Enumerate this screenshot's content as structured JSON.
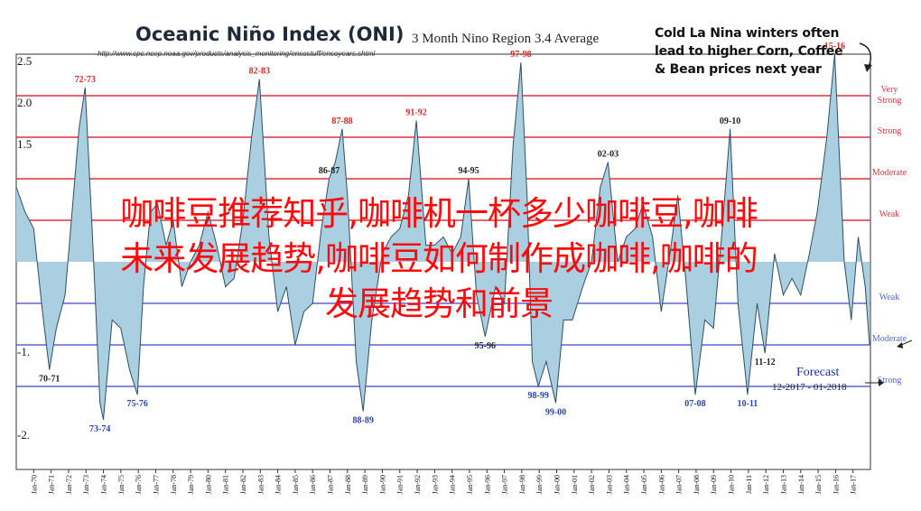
{
  "header": {
    "title": "Oceanic Niño Index (ONI)",
    "subtitle": "3 Month Nino Region 3.4 Average",
    "url": "http://www.cpc.ncep.noaa.gov/products/analysis_monitoring/ensostuff/ensoyears.shtml"
  },
  "callout": {
    "lines": [
      "Cold La Nina winters often",
      "lead to higher Corn, Coffee",
      "& Bean prices next year"
    ]
  },
  "overlay_text": {
    "lines": [
      "咖啡豆推荐知乎,咖啡机一杯多少咖啡豆,咖啡",
      "未来发展趋势,咖啡豆如何制作成咖啡,咖啡的",
      "发展趋势和前景"
    ]
  },
  "forecast": {
    "label": "Forecast",
    "range": "12-2017 - 01-2018"
  },
  "colors": {
    "fill": "#a9cfe0",
    "line": "#2e4f63",
    "red_band": "#e0323c",
    "blue_band": "#5a63d6"
  },
  "chart_data": {
    "type": "area",
    "title": "Oceanic Niño Index (ONI)",
    "subtitle": "3 Month Nino Region 3.4 Average",
    "ylim": [
      -2.5,
      2.5
    ],
    "y_tick_labels": [
      "2.5",
      "2.0",
      "1.5",
      "-1.",
      "-2."
    ],
    "x_tick_labels": [
      "Jan-70",
      "Jan-71",
      "Jan-72",
      "Jan-73",
      "Jan-74",
      "Jan-75",
      "Jan-76",
      "Jan-77",
      "Jan-78",
      "Jan-79",
      "Jan-80",
      "Jan-81",
      "Jan-82",
      "Jan-83",
      "Jan-84",
      "Jan-85",
      "Jan-86",
      "Jan-87",
      "Jan-88",
      "Jan-89",
      "Jan-90",
      "Jan-91",
      "Jan-92",
      "Jan-93",
      "Jan-94",
      "Jan-95",
      "Jan-96",
      "Jan-97",
      "Jan-98",
      "Jan-99",
      "Jan-00",
      "Jan-01",
      "Jan-02",
      "Jan-03",
      "Jan-04",
      "Jan-05",
      "Jan-06",
      "Jan-07",
      "Jan-08",
      "Jan-09",
      "Jan-10",
      "Jan-11",
      "Jan-12",
      "Jan-13",
      "Jan-14",
      "Jan-15",
      "Jan-16",
      "Jan-17"
    ],
    "bands": [
      {
        "value": 2.0,
        "label": "Very Strong",
        "kind": "el-nino"
      },
      {
        "value": 1.5,
        "label": "Strong",
        "kind": "el-nino"
      },
      {
        "value": 1.0,
        "label": "Moderate",
        "kind": "el-nino"
      },
      {
        "value": 0.5,
        "label": "Weak",
        "kind": "el-nino"
      },
      {
        "value": -0.5,
        "label": "Weak",
        "kind": "la-nina"
      },
      {
        "value": -1.0,
        "label": "Moderate",
        "kind": "la-nina"
      },
      {
        "value": -1.5,
        "label": "Strong",
        "kind": "la-nina"
      }
    ],
    "series": [
      {
        "x": [
          1969.0,
          1969.5,
          1970.0,
          1970.5,
          1970.9,
          1971.3,
          1971.8,
          1972.2,
          1972.6,
          1972.95,
          1973.4,
          1973.8,
          1974.0,
          1974.5,
          1975.0,
          1975.5,
          1975.95,
          1976.3,
          1976.7,
          1977.1,
          1977.6,
          1978.0,
          1978.5,
          1979.0,
          1979.5,
          1980.0,
          1980.5,
          1981.0,
          1981.5,
          1982.0,
          1982.5,
          1982.95,
          1983.5,
          1984.0,
          1984.5,
          1985.0,
          1985.5,
          1986.0,
          1986.5,
          1986.95,
          1987.3,
          1987.7,
          1988.0,
          1988.5,
          1988.9,
          1989.4,
          1990.0,
          1990.5,
          1991.0,
          1991.5,
          1991.95,
          1992.5,
          1993.0,
          1993.5,
          1994.0,
          1994.5,
          1994.95,
          1995.4,
          1995.9,
          1996.5,
          1997.0,
          1997.5,
          1997.95,
          1998.3,
          1998.6,
          1998.95,
          1999.4,
          1999.95,
          2000.4,
          2000.9,
          2001.5,
          2002.0,
          2002.5,
          2002.95,
          2003.5,
          2004.0,
          2004.5,
          2004.95,
          2005.5,
          2006.0,
          2006.5,
          2006.95,
          2007.4,
          2007.95,
          2008.5,
          2009.0,
          2009.5,
          2009.95,
          2010.4,
          2010.95,
          2011.5,
          2011.95,
          2012.5,
          2013.0,
          2013.5,
          2014.0,
          2014.5,
          2014.95,
          2015.5,
          2015.95,
          2016.5,
          2016.9,
          2017.3,
          2017.7,
          2017.95
        ],
        "y": [
          0.9,
          0.6,
          0.4,
          -0.6,
          -1.3,
          -0.8,
          -0.4,
          0.6,
          1.6,
          2.1,
          0.2,
          -1.7,
          -1.9,
          -0.7,
          -0.8,
          -1.3,
          -1.6,
          -0.3,
          0.6,
          0.7,
          0.2,
          0.5,
          -0.3,
          0.0,
          0.2,
          0.6,
          0.2,
          -0.3,
          -0.2,
          0.5,
          1.5,
          2.2,
          0.3,
          -0.6,
          -0.3,
          -1.0,
          -0.6,
          -0.5,
          0.4,
          1.0,
          1.2,
          1.6,
          0.8,
          -1.2,
          -1.8,
          -0.7,
          0.1,
          0.3,
          0.4,
          0.8,
          1.7,
          0.2,
          0.2,
          0.3,
          0.1,
          0.3,
          1.0,
          -0.4,
          -0.9,
          -0.3,
          -0.5,
          1.4,
          2.4,
          0.8,
          -1.2,
          -1.5,
          -1.2,
          -1.7,
          -0.7,
          -0.7,
          -0.3,
          0.0,
          0.9,
          1.2,
          0.0,
          0.3,
          0.4,
          0.7,
          0.3,
          -0.6,
          0.1,
          0.8,
          -0.2,
          -1.6,
          -0.7,
          -0.8,
          0.4,
          1.6,
          -0.5,
          -1.6,
          -0.5,
          -1.1,
          0.1,
          -0.4,
          -0.2,
          -0.4,
          0.1,
          0.6,
          1.5,
          2.5,
          0.0,
          -0.7,
          0.3,
          -0.3,
          -1.0
        ]
      }
    ],
    "annotations": [
      {
        "text": "72-73",
        "x": 1972.95,
        "y": 2.1,
        "pos": "above",
        "color": "#d02a2a"
      },
      {
        "text": "82-83",
        "x": 1982.95,
        "y": 2.2,
        "pos": "above",
        "color": "#d02a2a"
      },
      {
        "text": "87-88",
        "x": 1987.7,
        "y": 1.6,
        "pos": "above",
        "color": "#d02a2a"
      },
      {
        "text": "91-92",
        "x": 1991.95,
        "y": 1.7,
        "pos": "above",
        "color": "#d02a2a"
      },
      {
        "text": "97-98",
        "x": 1997.95,
        "y": 2.4,
        "pos": "above",
        "color": "#d02a2a"
      },
      {
        "text": "15-16",
        "x": 2015.95,
        "y": 2.5,
        "pos": "above",
        "color": "#d02a2a"
      },
      {
        "text": "86-87",
        "x": 1986.95,
        "y": 1.0,
        "pos": "above",
        "color": "#222222"
      },
      {
        "text": "94-95",
        "x": 1994.95,
        "y": 1.0,
        "pos": "above",
        "color": "#222222"
      },
      {
        "text": "02-03",
        "x": 2002.95,
        "y": 1.2,
        "pos": "above",
        "color": "#222222"
      },
      {
        "text": "09-10",
        "x": 2009.95,
        "y": 1.6,
        "pos": "above",
        "color": "#222222"
      },
      {
        "text": "70-71",
        "x": 1970.9,
        "y": -1.3,
        "pos": "below",
        "color": "#222222"
      },
      {
        "text": "95-96",
        "x": 1995.9,
        "y": -0.9,
        "pos": "below",
        "color": "#222222"
      },
      {
        "text": "11-12",
        "x": 2011.95,
        "y": -1.1,
        "pos": "below",
        "color": "#222222"
      },
      {
        "text": "73-74",
        "x": 1973.8,
        "y": -1.9,
        "pos": "below",
        "color": "#2a45a8"
      },
      {
        "text": "75-76",
        "x": 1975.95,
        "y": -1.6,
        "pos": "below",
        "color": "#2a45a8"
      },
      {
        "text": "88-89",
        "x": 1988.9,
        "y": -1.8,
        "pos": "below",
        "color": "#2a45a8"
      },
      {
        "text": "98-99",
        "x": 1998.95,
        "y": -1.5,
        "pos": "below",
        "color": "#2a45a8"
      },
      {
        "text": "99-00",
        "x": 1999.95,
        "y": -1.7,
        "pos": "below",
        "color": "#2a45a8"
      },
      {
        "text": "07-08",
        "x": 2007.95,
        "y": -1.6,
        "pos": "below",
        "color": "#2a45a8"
      },
      {
        "text": "10-11",
        "x": 2010.95,
        "y": -1.6,
        "pos": "below",
        "color": "#2a45a8"
      }
    ],
    "grid": false,
    "legend": "none"
  }
}
